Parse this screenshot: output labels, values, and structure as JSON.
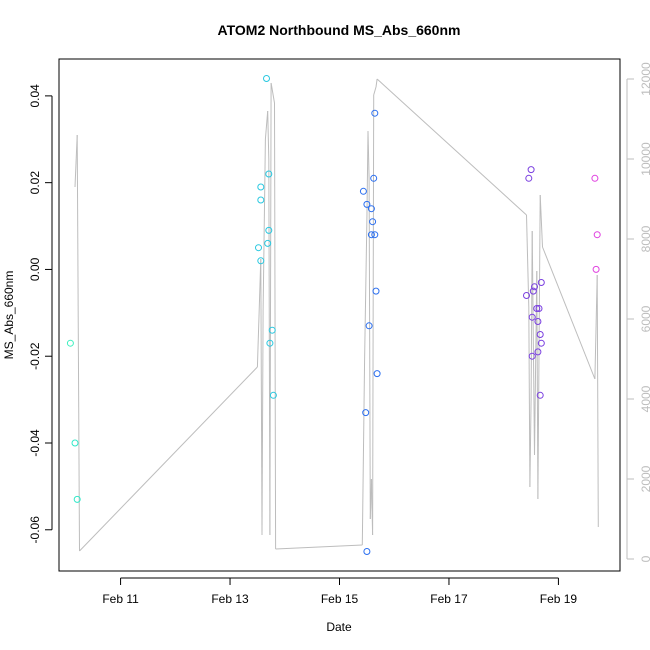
{
  "chart_data": {
    "type": "scatter",
    "title": "ATOM2 Northbound MS_Abs_660nm",
    "xlabel": "Date",
    "ylabel": "MS_Abs_660nm",
    "xlim": [
      "2024-02-09T21:00",
      "2024-02-20T03:00"
    ],
    "ylim": [
      -0.0695,
      0.0485
    ],
    "xticks": [
      "2024-02-11",
      "2024-02-13",
      "2024-02-15",
      "2024-02-17",
      "2024-02-19"
    ],
    "xtick_labels": [
      "Feb 11",
      "Feb 13",
      "Feb 15",
      "Feb 17",
      "Feb 19"
    ],
    "yticks": [
      -0.06,
      -0.04,
      -0.02,
      0.0,
      0.02,
      0.04
    ],
    "ytick_labels": [
      "-0.06",
      "-0.04",
      "-0.02",
      "0.00",
      "0.02",
      "0.04"
    ],
    "y2lim": [
      -300,
      12500
    ],
    "y2ticks": [
      0,
      2000,
      4000,
      6000,
      8000,
      10000,
      12000
    ],
    "y2tick_labels": [
      "0",
      "2000",
      "4000",
      "6000",
      "8000",
      "10000",
      "12000"
    ],
    "grid": false,
    "legend": "none",
    "points": [
      {
        "x": "2024-02-10T02:00",
        "y": -0.017,
        "color": "#40f0c0"
      },
      {
        "x": "2024-02-10T04:00",
        "y": -0.04,
        "color": "#30e8c8"
      },
      {
        "x": "2024-02-10T05:00",
        "y": -0.053,
        "color": "#30e8c8"
      },
      {
        "x": "2024-02-13T12:30",
        "y": 0.005,
        "color": "#29c8e0"
      },
      {
        "x": "2024-02-13T13:30",
        "y": 0.002,
        "color": "#29c8e0"
      },
      {
        "x": "2024-02-13T13:30",
        "y": 0.019,
        "color": "#29c8e0"
      },
      {
        "x": "2024-02-13T13:30",
        "y": 0.016,
        "color": "#29c8e0"
      },
      {
        "x": "2024-02-13T16:00",
        "y": 0.044,
        "color": "#29c8e0"
      },
      {
        "x": "2024-02-13T16:30",
        "y": 0.006,
        "color": "#29c8e0"
      },
      {
        "x": "2024-02-13T17:00",
        "y": 0.022,
        "color": "#29c8e0"
      },
      {
        "x": "2024-02-13T17:00",
        "y": 0.009,
        "color": "#29c8e0"
      },
      {
        "x": "2024-02-13T17:30",
        "y": -0.017,
        "color": "#29c8e0"
      },
      {
        "x": "2024-02-13T18:30",
        "y": -0.014,
        "color": "#29c8e0"
      },
      {
        "x": "2024-02-13T19:00",
        "y": -0.029,
        "color": "#29c8e0"
      },
      {
        "x": "2024-02-15T10:30",
        "y": 0.018,
        "color": "#2b6ff0"
      },
      {
        "x": "2024-02-15T11:30",
        "y": -0.033,
        "color": "#2b6ff0"
      },
      {
        "x": "2024-02-15T12:00",
        "y": 0.015,
        "color": "#2b6ff0"
      },
      {
        "x": "2024-02-15T12:00",
        "y": -0.065,
        "color": "#2b6ff0"
      },
      {
        "x": "2024-02-15T13:00",
        "y": -0.013,
        "color": "#2b6ff0"
      },
      {
        "x": "2024-02-15T14:00",
        "y": 0.014,
        "color": "#2b6ff0"
      },
      {
        "x": "2024-02-15T14:00",
        "y": 0.008,
        "color": "#2b6ff0"
      },
      {
        "x": "2024-02-15T14:30",
        "y": 0.011,
        "color": "#2b6ff0"
      },
      {
        "x": "2024-02-15T15:00",
        "y": 0.021,
        "color": "#2b6ff0"
      },
      {
        "x": "2024-02-15T15:30",
        "y": 0.036,
        "color": "#2b6ff0"
      },
      {
        "x": "2024-02-15T15:30",
        "y": 0.008,
        "color": "#2b6ff0"
      },
      {
        "x": "2024-02-15T16:00",
        "y": -0.005,
        "color": "#2b6ff0"
      },
      {
        "x": "2024-02-15T16:30",
        "y": -0.024,
        "color": "#2b6ff0"
      },
      {
        "x": "2024-02-18T10:00",
        "y": -0.006,
        "color": "#7a3fe0"
      },
      {
        "x": "2024-02-18T11:00",
        "y": 0.021,
        "color": "#7a3fe0"
      },
      {
        "x": "2024-02-18T12:00",
        "y": 0.023,
        "color": "#7a3fe0"
      },
      {
        "x": "2024-02-18T12:30",
        "y": -0.02,
        "color": "#7a3fe0"
      },
      {
        "x": "2024-02-18T12:30",
        "y": -0.011,
        "color": "#7a3fe0"
      },
      {
        "x": "2024-02-18T13:00",
        "y": -0.005,
        "color": "#7a3fe0"
      },
      {
        "x": "2024-02-18T13:30",
        "y": -0.004,
        "color": "#7a3fe0"
      },
      {
        "x": "2024-02-18T14:30",
        "y": -0.009,
        "color": "#7a3fe0"
      },
      {
        "x": "2024-02-18T15:00",
        "y": -0.012,
        "color": "#7a3fe0"
      },
      {
        "x": "2024-02-18T15:00",
        "y": -0.019,
        "color": "#7a3fe0"
      },
      {
        "x": "2024-02-18T15:30",
        "y": -0.009,
        "color": "#7a3fe0"
      },
      {
        "x": "2024-02-18T16:00",
        "y": -0.015,
        "color": "#7a3fe0"
      },
      {
        "x": "2024-02-18T16:00",
        "y": -0.029,
        "color": "#7a3fe0"
      },
      {
        "x": "2024-02-18T16:30",
        "y": -0.017,
        "color": "#7a3fe0"
      },
      {
        "x": "2024-02-18T16:30",
        "y": -0.003,
        "color": "#7a3fe0"
      },
      {
        "x": "2024-02-19T16:00",
        "y": 0.021,
        "color": "#e040e0"
      },
      {
        "x": "2024-02-19T16:30",
        "y": 0.0,
        "color": "#e040e0"
      },
      {
        "x": "2024-02-19T17:00",
        "y": 0.008,
        "color": "#e040e0"
      }
    ],
    "secondary_series": {
      "axis": "right",
      "color": "#bdbdbd",
      "points": [
        {
          "x": "2024-02-10T04:00",
          "y": 9300
        },
        {
          "x": "2024-02-10T05:00",
          "y": 10600
        },
        {
          "x": "2024-02-10T06:00",
          "y": 200
        },
        {
          "x": "2024-02-13T12:00",
          "y": 4800
        },
        {
          "x": "2024-02-13T13:30",
          "y": 7500
        },
        {
          "x": "2024-02-13T14:00",
          "y": 600
        },
        {
          "x": "2024-02-13T14:30",
          "y": 6200
        },
        {
          "x": "2024-02-13T15:30",
          "y": 10500
        },
        {
          "x": "2024-02-13T16:30",
          "y": 11200
        },
        {
          "x": "2024-02-13T17:00",
          "y": 10000
        },
        {
          "x": "2024-02-13T17:30",
          "y": 600
        },
        {
          "x": "2024-02-13T18:00",
          "y": 11900
        },
        {
          "x": "2024-02-13T19:30",
          "y": 11400
        },
        {
          "x": "2024-02-13T20:00",
          "y": 250
        },
        {
          "x": "2024-02-15T10:00",
          "y": 350
        },
        {
          "x": "2024-02-15T11:00",
          "y": 5000
        },
        {
          "x": "2024-02-15T12:00",
          "y": 8500
        },
        {
          "x": "2024-02-15T12:30",
          "y": 10700
        },
        {
          "x": "2024-02-15T13:00",
          "y": 9500
        },
        {
          "x": "2024-02-15T13:30",
          "y": 1000
        },
        {
          "x": "2024-02-15T14:00",
          "y": 2000
        },
        {
          "x": "2024-02-15T14:30",
          "y": 600
        },
        {
          "x": "2024-02-15T15:00",
          "y": 11600
        },
        {
          "x": "2024-02-15T16:00",
          "y": 11800
        },
        {
          "x": "2024-02-15T16:30",
          "y": 12000
        },
        {
          "x": "2024-02-18T10:00",
          "y": 8600
        },
        {
          "x": "2024-02-18T11:00",
          "y": 6300
        },
        {
          "x": "2024-02-18T11:30",
          "y": 1800
        },
        {
          "x": "2024-02-18T12:00",
          "y": 4000
        },
        {
          "x": "2024-02-18T12:30",
          "y": 8200
        },
        {
          "x": "2024-02-18T13:30",
          "y": 2600
        },
        {
          "x": "2024-02-18T14:30",
          "y": 7200
        },
        {
          "x": "2024-02-18T15:00",
          "y": 1500
        },
        {
          "x": "2024-02-18T16:00",
          "y": 9100
        },
        {
          "x": "2024-02-18T17:00",
          "y": 7800
        },
        {
          "x": "2024-02-19T16:00",
          "y": 4500
        },
        {
          "x": "2024-02-19T17:00",
          "y": 7100
        },
        {
          "x": "2024-02-19T17:30",
          "y": 800
        }
      ]
    }
  }
}
